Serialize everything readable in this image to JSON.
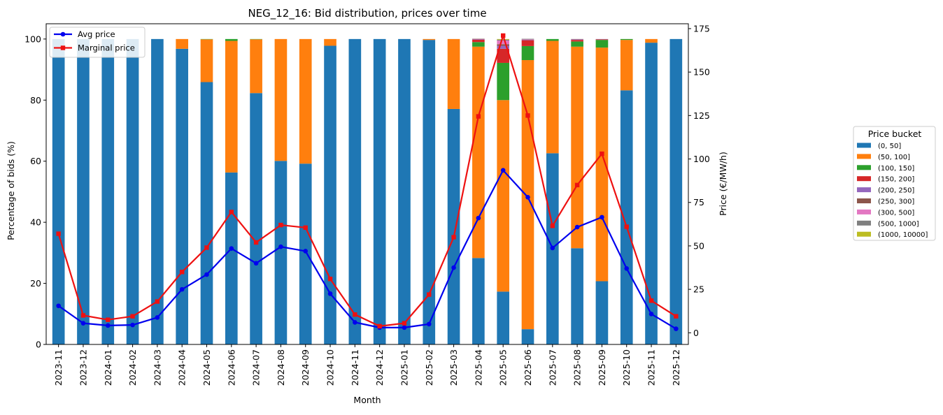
{
  "chart_data": {
    "type": "bar",
    "stacked": true,
    "title": "NEG_12_16: Bid distribution, prices over time",
    "xlabel": "Month",
    "ylabel": "Percentage of bids (%)",
    "y2label": "Price (€/MW/h)",
    "ylim": [
      0,
      105
    ],
    "y2lim": [
      -6.7,
      177.8
    ],
    "yticks": [
      0,
      20,
      40,
      60,
      80,
      100
    ],
    "y2ticks": [
      0,
      25,
      50,
      75,
      100,
      125,
      150,
      175
    ],
    "grid": false,
    "categories": [
      "2023-11",
      "2023-12",
      "2024-01",
      "2024-02",
      "2024-03",
      "2024-04",
      "2024-05",
      "2024-06",
      "2024-07",
      "2024-08",
      "2024-09",
      "2024-10",
      "2024-11",
      "2024-12",
      "2025-01",
      "2025-02",
      "2025-03",
      "2025-04",
      "2025-05",
      "2025-06",
      "2025-07",
      "2025-08",
      "2025-09",
      "2025-10",
      "2025-11",
      "2025-12"
    ],
    "legend_title": "Price bucket",
    "series": [
      {
        "name": "(0, 50]",
        "color": "#1f77b4",
        "values": [
          100,
          100,
          100,
          100,
          100,
          96.8,
          85.9,
          56.3,
          82.3,
          60.1,
          59.2,
          97.8,
          100,
          100,
          100,
          99.7,
          77.1,
          28.3,
          17.3,
          5.0,
          62.6,
          31.5,
          20.7,
          83.2,
          98.8,
          100
        ]
      },
      {
        "name": "(50, 100]",
        "color": "#ff7f0e",
        "values": [
          0,
          0,
          0,
          0,
          0,
          3.2,
          14.0,
          43.1,
          17.6,
          39.9,
          40.8,
          2.2,
          0,
          0,
          0,
          0.3,
          22.9,
          69.2,
          62.7,
          88.1,
          36.8,
          66.0,
          76.5,
          16.5,
          1.2,
          0
        ]
      },
      {
        "name": "(100, 150]",
        "color": "#2ca02c",
        "values": [
          0,
          0,
          0,
          0,
          0,
          0,
          0.1,
          0.6,
          0.1,
          0,
          0,
          0,
          0,
          0,
          0,
          0,
          0,
          1.5,
          12.2,
          4.6,
          0.6,
          1.7,
          2.5,
          0.3,
          0,
          0
        ]
      },
      {
        "name": "(150, 200]",
        "color": "#d62728",
        "values": [
          0,
          0,
          0,
          0,
          0,
          0,
          0,
          0,
          0,
          0,
          0,
          0,
          0,
          0,
          0,
          0,
          0,
          0.8,
          4.6,
          1.9,
          0,
          0.5,
          0.2,
          0,
          0,
          0
        ]
      },
      {
        "name": "(200, 250]",
        "color": "#9467bd",
        "values": [
          0,
          0,
          0,
          0,
          0,
          0,
          0,
          0,
          0,
          0,
          0,
          0,
          0,
          0,
          0,
          0,
          0,
          0.2,
          1.0,
          0.2,
          0,
          0.2,
          0.1,
          0,
          0,
          0
        ]
      },
      {
        "name": "(250, 300]",
        "color": "#8c564b",
        "values": [
          0,
          0,
          0,
          0,
          0,
          0,
          0,
          0,
          0,
          0,
          0,
          0,
          0,
          0,
          0,
          0,
          0,
          0.1,
          0.5,
          0.1,
          0,
          0.1,
          0,
          0,
          0,
          0
        ]
      },
      {
        "name": "(300, 500]",
        "color": "#e377c2",
        "values": [
          0,
          0,
          0,
          0,
          0,
          0,
          0,
          0,
          0,
          0,
          0,
          0,
          0,
          0,
          0,
          0,
          0,
          0,
          1.2,
          0.1,
          0,
          0,
          0,
          0,
          0,
          0
        ]
      },
      {
        "name": "(500, 1000]",
        "color": "#7f7f7f",
        "values": [
          0,
          0,
          0,
          0,
          0,
          0,
          0,
          0,
          0,
          0,
          0,
          0,
          0,
          0,
          0,
          0,
          0,
          0,
          0.3,
          0.1,
          0,
          0,
          0,
          0,
          0,
          0
        ]
      },
      {
        "name": "(1000, 10000]",
        "color": "#bcbd22",
        "values": [
          0,
          0,
          0,
          0,
          0,
          0,
          0,
          0,
          0,
          0,
          0,
          0,
          0,
          0,
          0,
          0,
          0,
          0,
          0.2,
          0,
          0,
          0,
          0,
          0,
          0,
          0
        ]
      }
    ],
    "lines": [
      {
        "name": "Avg price",
        "color": "#0000ee",
        "marker": "circle",
        "axis": "right",
        "values": [
          15.5,
          5.5,
          4.2,
          4.5,
          8.8,
          25.0,
          33.5,
          48.5,
          40.0,
          49.5,
          47.0,
          22.5,
          6.0,
          3.0,
          3.0,
          5.0,
          37.5,
          66.0,
          93.5,
          78.0,
          48.8,
          60.8,
          66.5,
          37.0,
          10.8,
          2.3
        ]
      },
      {
        "name": "Marginal price",
        "color": "#ee1111",
        "marker": "square",
        "axis": "right",
        "values": [
          57.0,
          10.0,
          7.5,
          9.5,
          18.0,
          35.0,
          49.0,
          69.5,
          52.0,
          62.0,
          60.5,
          31.0,
          10.5,
          3.8,
          5.5,
          22.0,
          55.0,
          124.5,
          171.0,
          125.0,
          61.5,
          85.0,
          103.0,
          61.0,
          18.5,
          9.5
        ]
      }
    ]
  }
}
